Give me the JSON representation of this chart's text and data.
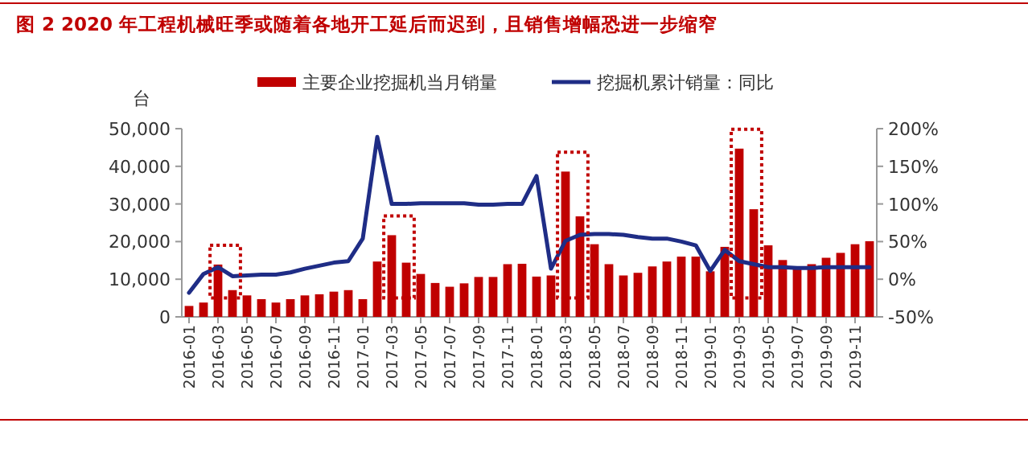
{
  "chart_data": {
    "type": "bar",
    "title": "图 2   2020 年工程机械旺季或随着各地开工延后而迟到，且销售增幅恐进一步缩窄",
    "ylabel": "台",
    "categories": [
      "2016-01",
      null,
      "2016-03",
      null,
      "2016-05",
      null,
      "2016-07",
      null,
      "2016-09",
      null,
      "2016-11",
      null,
      "2017-01",
      null,
      "2017-03",
      null,
      "2017-05",
      null,
      "2017-07",
      null,
      "2017-09",
      null,
      "2017-11",
      null,
      "2018-01",
      null,
      "2018-03",
      null,
      "2018-05",
      null,
      "2018-07",
      null,
      "2018-09",
      null,
      "2018-11",
      null,
      "2019-01",
      null,
      "2019-03",
      null,
      "2019-05",
      null,
      "2019-07",
      null,
      "2019-09",
      null,
      "2019-11",
      null
    ],
    "series": [
      {
        "name": "主要企业挖掘机当月销量",
        "color": "#c00000",
        "values": [
          2900,
          3800,
          13900,
          7100,
          5700,
          4700,
          3800,
          4700,
          5700,
          6000,
          6700,
          7100,
          4700,
          14700,
          21700,
          14400,
          11400,
          9000,
          8000,
          8900,
          10600,
          10600,
          14000,
          14100,
          10700,
          11000,
          38600,
          26700,
          19300,
          14000,
          11000,
          11700,
          13400,
          14700,
          16000,
          16000,
          12100,
          18600,
          44700,
          28600,
          19000,
          15100,
          13100,
          14000,
          15700,
          17000,
          19300,
          20100
        ]
      },
      {
        "name": "挖掘机累计销量：同比",
        "type": "line",
        "axis": "y2",
        "color": "#1f2d86",
        "values": [
          -18,
          7,
          16,
          4,
          5,
          6,
          6,
          9,
          14,
          18,
          22,
          24,
          54,
          189,
          100,
          100,
          101,
          101,
          101,
          101,
          99,
          99,
          100,
          100,
          137,
          14,
          51,
          59,
          60,
          60,
          59,
          56,
          54,
          54,
          50,
          45,
          11,
          39,
          24,
          20,
          16,
          16,
          15,
          15,
          16,
          16,
          16,
          16
        ]
      }
    ],
    "ylim": [
      0,
      50000
    ],
    "yticks": [
      {
        "value": 0,
        "label": "0"
      },
      {
        "value": 10000,
        "label": "10,000"
      },
      {
        "value": 20000,
        "label": "20,000"
      },
      {
        "value": 30000,
        "label": "30,000"
      },
      {
        "value": 40000,
        "label": "40,000"
      },
      {
        "value": 50000,
        "label": "50,000"
      }
    ],
    "y2lim": [
      -50,
      200
    ],
    "y2ticks": [
      {
        "value": -50,
        "label": "-50%"
      },
      {
        "value": 0,
        "label": "0%"
      },
      {
        "value": 50,
        "label": "50%"
      },
      {
        "value": 100,
        "label": "100%"
      },
      {
        "value": 150,
        "label": "150%"
      },
      {
        "value": 200,
        "label": "200%"
      }
    ],
    "grid": false,
    "legend": "top"
  }
}
